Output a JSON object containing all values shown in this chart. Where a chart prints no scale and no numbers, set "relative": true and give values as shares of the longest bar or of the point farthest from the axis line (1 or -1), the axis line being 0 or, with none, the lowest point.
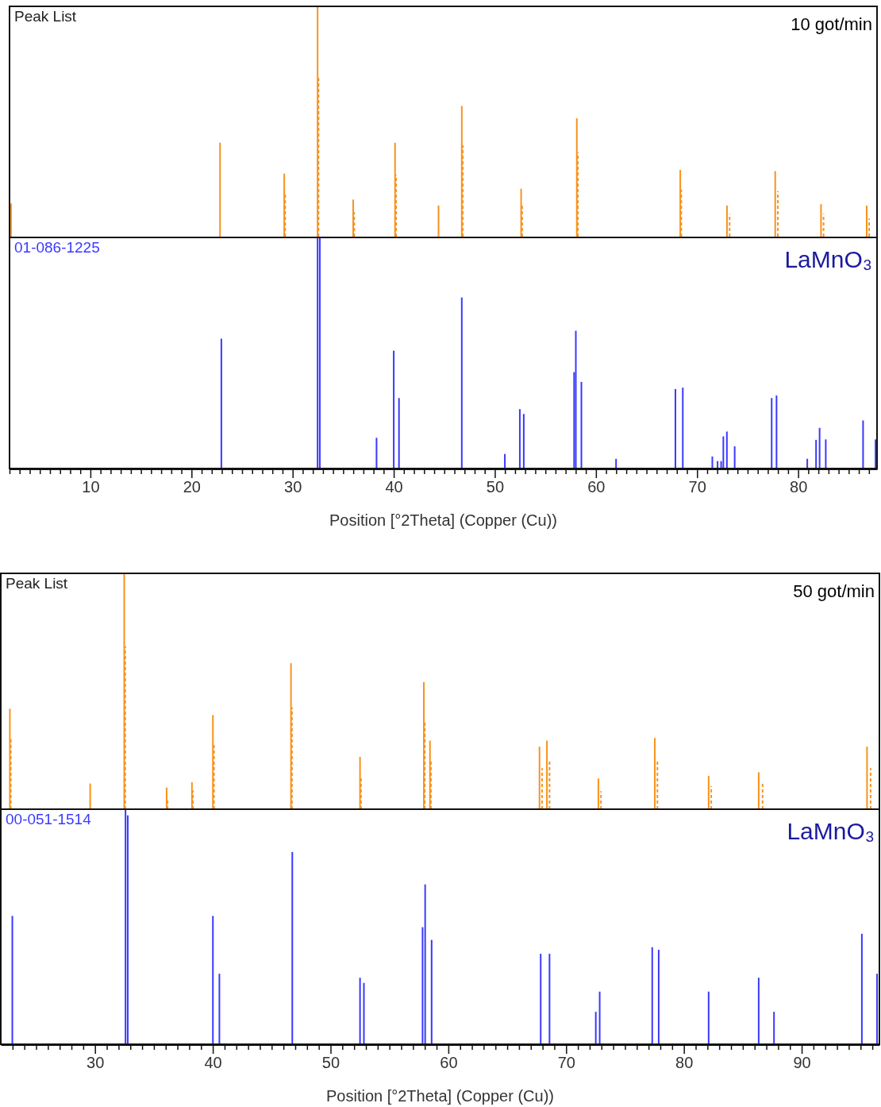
{
  "chart_data": [
    {
      "type": "bar",
      "title": "Peak List",
      "annotations": [
        "10 got/min"
      ],
      "relative": true,
      "xlim": [
        2,
        87.8
      ],
      "tick_labels": false,
      "series": [
        {
          "color": "#f7931e",
          "line_style": "solid",
          "x": [
            2.15,
            22.82,
            29.17,
            32.47,
            35.99,
            40.13,
            44.43,
            46.73,
            52.6,
            58.11,
            68.34,
            72.96,
            77.73,
            82.26,
            86.78
          ],
          "values": [
            0.147,
            0.41,
            0.276,
            1,
            0.164,
            0.41,
            0.138,
            0.569,
            0.211,
            0.516,
            0.292,
            0.138,
            0.287,
            0.144,
            0.138
          ]
        },
        {
          "color": "#f7931e",
          "line_style": "dashed",
          "x": [
            29.26,
            32.56,
            36.09,
            40.23,
            46.83,
            52.7,
            58.21,
            68.44,
            73.22,
            77.99,
            82.51,
            87.02
          ],
          "values": [
            0.197,
            0.69,
            0.109,
            0.271,
            0.399,
            0.144,
            0.368,
            0.207,
            0.102,
            0.2,
            0.102,
            0.081
          ]
        }
      ]
    },
    {
      "type": "bar",
      "title": "01-086-1225",
      "annotations": [
        "LaMnO₃"
      ],
      "relative": true,
      "xlim": [
        2,
        87.8
      ],
      "xlabel": "Position [°2Theta] (Copper (Cu))",
      "xticks": [
        {
          "value": 2,
          "label": null
        },
        {
          "value": 3,
          "label": null
        },
        {
          "value": 4,
          "label": null
        },
        {
          "value": 5,
          "label": null
        },
        {
          "value": 6,
          "label": null
        },
        {
          "value": 7,
          "label": null
        },
        {
          "value": 8,
          "label": null
        },
        {
          "value": 9,
          "label": null
        },
        10,
        {
          "value": 11,
          "label": null
        },
        {
          "value": 12,
          "label": null
        },
        {
          "value": 13,
          "label": null
        },
        {
          "value": 14,
          "label": null
        },
        {
          "value": 15,
          "label": null
        },
        {
          "value": 16,
          "label": null
        },
        {
          "value": 17,
          "label": null
        },
        {
          "value": 18,
          "label": null
        },
        {
          "value": 19,
          "label": null
        },
        20,
        {
          "value": 21,
          "label": null
        },
        {
          "value": 22,
          "label": null
        },
        {
          "value": 23,
          "label": null
        },
        {
          "value": 24,
          "label": null
        },
        {
          "value": 25,
          "label": null
        },
        {
          "value": 26,
          "label": null
        },
        {
          "value": 27,
          "label": null
        },
        {
          "value": 28,
          "label": null
        },
        {
          "value": 29,
          "label": null
        },
        30,
        {
          "value": 31,
          "label": null
        },
        {
          "value": 32,
          "label": null
        },
        {
          "value": 33,
          "label": null
        },
        {
          "value": 34,
          "label": null
        },
        {
          "value": 35,
          "label": null
        },
        {
          "value": 36,
          "label": null
        },
        {
          "value": 37,
          "label": null
        },
        {
          "value": 38,
          "label": null
        },
        {
          "value": 39,
          "label": null
        },
        40,
        {
          "value": 41,
          "label": null
        },
        {
          "value": 42,
          "label": null
        },
        {
          "value": 43,
          "label": null
        },
        {
          "value": 44,
          "label": null
        },
        {
          "value": 45,
          "label": null
        },
        {
          "value": 46,
          "label": null
        },
        {
          "value": 47,
          "label": null
        },
        {
          "value": 48,
          "label": null
        },
        {
          "value": 49,
          "label": null
        },
        50,
        {
          "value": 51,
          "label": null
        },
        {
          "value": 52,
          "label": null
        },
        {
          "value": 53,
          "label": null
        },
        {
          "value": 54,
          "label": null
        },
        {
          "value": 55,
          "label": null
        },
        {
          "value": 56,
          "label": null
        },
        {
          "value": 57,
          "label": null
        },
        {
          "value": 58,
          "label": null
        },
        {
          "value": 59,
          "label": null
        },
        60,
        {
          "value": 61,
          "label": null
        },
        {
          "value": 62,
          "label": null
        },
        {
          "value": 63,
          "label": null
        },
        {
          "value": 64,
          "label": null
        },
        {
          "value": 65,
          "label": null
        },
        {
          "value": 66,
          "label": null
        },
        {
          "value": 67,
          "label": null
        },
        {
          "value": 68,
          "label": null
        },
        {
          "value": 69,
          "label": null
        },
        70,
        {
          "value": 71,
          "label": null
        },
        {
          "value": 72,
          "label": null
        },
        {
          "value": 73,
          "label": null
        },
        {
          "value": 74,
          "label": null
        },
        {
          "value": 75,
          "label": null
        },
        {
          "value": 76,
          "label": null
        },
        {
          "value": 77,
          "label": null
        },
        {
          "value": 78,
          "label": null
        },
        {
          "value": 79,
          "label": null
        },
        80,
        {
          "value": 81,
          "label": null
        },
        {
          "value": 82,
          "label": null
        },
        {
          "value": 83,
          "label": null
        },
        {
          "value": 84,
          "label": null
        },
        {
          "value": 85,
          "label": null
        },
        {
          "value": 86,
          "label": null
        },
        {
          "value": 87,
          "label": null
        }
      ],
      "series": [
        {
          "color": "#3a3aff",
          "line_style": "solid",
          "x": [
            22.95,
            32.47,
            32.69,
            38.3,
            40.0,
            40.52,
            46.73,
            50.99,
            52.47,
            52.86,
            57.84,
            58.01,
            58.56,
            61.99,
            67.86,
            68.59,
            71.51,
            72.03,
            72.38,
            72.6,
            72.95,
            73.72,
            77.38,
            77.86,
            80.9,
            81.77,
            82.12,
            82.73,
            86.42,
            87.65
          ],
          "values": [
            0.562,
            1,
            1,
            0.133,
            0.51,
            0.305,
            0.74,
            0.063,
            0.257,
            0.236,
            0.417,
            0.596,
            0.375,
            0.042,
            0.344,
            0.35,
            0.052,
            0.032,
            0.032,
            0.139,
            0.16,
            0.096,
            0.305,
            0.316,
            0.042,
            0.124,
            0.176,
            0.126,
            0.208,
            0.126
          ]
        }
      ]
    },
    {
      "type": "bar",
      "title": "Peak List",
      "annotations": [
        "50 got/min"
      ],
      "relative": true,
      "xlim": [
        22,
        96.6
      ],
      "tick_labels": false,
      "series": [
        {
          "color": "#f7931e",
          "line_style": "solid",
          "x": [
            22.77,
            29.59,
            32.48,
            36.08,
            38.23,
            40.01,
            46.64,
            52.5,
            57.92,
            58.44,
            67.74,
            68.37,
            72.74,
            77.53,
            82.1,
            86.35,
            95.55
          ],
          "values": [
            0.426,
            0.109,
            1,
            0.092,
            0.114,
            0.399,
            0.619,
            0.222,
            0.539,
            0.291,
            0.265,
            0.291,
            0.13,
            0.302,
            0.141,
            0.157,
            0.265
          ]
        },
        {
          "color": "#f7931e",
          "line_style": "dashed",
          "x": [
            22.85,
            32.56,
            36.16,
            38.31,
            40.1,
            46.72,
            52.58,
            58.0,
            58.52,
            67.96,
            68.59,
            72.96,
            77.75,
            82.32,
            86.68,
            95.85
          ],
          "values": [
            0.305,
            0.691,
            0.044,
            0.079,
            0.272,
            0.432,
            0.142,
            0.367,
            0.206,
            0.174,
            0.206,
            0.076,
            0.206,
            0.098,
            0.112,
            0.174
          ]
        }
      ]
    },
    {
      "type": "bar",
      "title": "00-051-1514",
      "annotations": [
        "LaMnO₃"
      ],
      "relative": true,
      "xlim": [
        22,
        96.6
      ],
      "xlabel": "Position [°2Theta] (Copper (Cu))",
      "xticks": [
        {
          "value": 23,
          "label": null
        },
        {
          "value": 24,
          "label": null
        },
        {
          "value": 25,
          "label": null
        },
        {
          "value": 26,
          "label": null
        },
        {
          "value": 27,
          "label": null
        },
        {
          "value": 28,
          "label": null
        },
        {
          "value": 29,
          "label": null
        },
        30,
        {
          "value": 31,
          "label": null
        },
        {
          "value": 32,
          "label": null
        },
        {
          "value": 33,
          "label": null
        },
        {
          "value": 34,
          "label": null
        },
        {
          "value": 35,
          "label": null
        },
        {
          "value": 36,
          "label": null
        },
        {
          "value": 37,
          "label": null
        },
        {
          "value": 38,
          "label": null
        },
        {
          "value": 39,
          "label": null
        },
        40,
        {
          "value": 41,
          "label": null
        },
        {
          "value": 42,
          "label": null
        },
        {
          "value": 43,
          "label": null
        },
        {
          "value": 44,
          "label": null
        },
        {
          "value": 45,
          "label": null
        },
        {
          "value": 46,
          "label": null
        },
        {
          "value": 47,
          "label": null
        },
        {
          "value": 48,
          "label": null
        },
        {
          "value": 49,
          "label": null
        },
        50,
        {
          "value": 51,
          "label": null
        },
        {
          "value": 52,
          "label": null
        },
        {
          "value": 53,
          "label": null
        },
        {
          "value": 54,
          "label": null
        },
        {
          "value": 55,
          "label": null
        },
        {
          "value": 56,
          "label": null
        },
        {
          "value": 57,
          "label": null
        },
        {
          "value": 58,
          "label": null
        },
        {
          "value": 59,
          "label": null
        },
        60,
        {
          "value": 61,
          "label": null
        },
        {
          "value": 62,
          "label": null
        },
        {
          "value": 63,
          "label": null
        },
        {
          "value": 64,
          "label": null
        },
        {
          "value": 65,
          "label": null
        },
        {
          "value": 66,
          "label": null
        },
        {
          "value": 67,
          "label": null
        },
        {
          "value": 68,
          "label": null
        },
        {
          "value": 69,
          "label": null
        },
        70,
        {
          "value": 71,
          "label": null
        },
        {
          "value": 72,
          "label": null
        },
        {
          "value": 73,
          "label": null
        },
        {
          "value": 74,
          "label": null
        },
        {
          "value": 75,
          "label": null
        },
        {
          "value": 76,
          "label": null
        },
        {
          "value": 77,
          "label": null
        },
        {
          "value": 78,
          "label": null
        },
        {
          "value": 79,
          "label": null
        },
        80,
        {
          "value": 81,
          "label": null
        },
        {
          "value": 82,
          "label": null
        },
        {
          "value": 83,
          "label": null
        },
        {
          "value": 84,
          "label": null
        },
        {
          "value": 85,
          "label": null
        },
        {
          "value": 86,
          "label": null
        },
        {
          "value": 87,
          "label": null
        },
        {
          "value": 88,
          "label": null
        },
        {
          "value": 89,
          "label": null
        },
        90,
        {
          "value": 91,
          "label": null
        },
        {
          "value": 92,
          "label": null
        },
        {
          "value": 93,
          "label": null
        },
        {
          "value": 94,
          "label": null
        },
        {
          "value": 95,
          "label": null
        },
        {
          "value": 96,
          "label": null
        }
      ],
      "series": [
        {
          "color": "#3a3aff",
          "line_style": "solid",
          "x": [
            22.98,
            32.59,
            32.78,
            40.01,
            40.56,
            46.75,
            52.5,
            52.83,
            57.81,
            58.03,
            58.58,
            67.84,
            68.59,
            72.52,
            72.85,
            77.31,
            77.86,
            82.1,
            86.35,
            87.65,
            95.11,
            96.4
          ],
          "values": [
            0.546,
            1,
            0.974,
            0.546,
            0.3,
            0.818,
            0.283,
            0.261,
            0.498,
            0.68,
            0.444,
            0.385,
            0.385,
            0.138,
            0.224,
            0.413,
            0.402,
            0.224,
            0.283,
            0.138,
            0.47,
            0.3
          ]
        }
      ]
    }
  ]
}
